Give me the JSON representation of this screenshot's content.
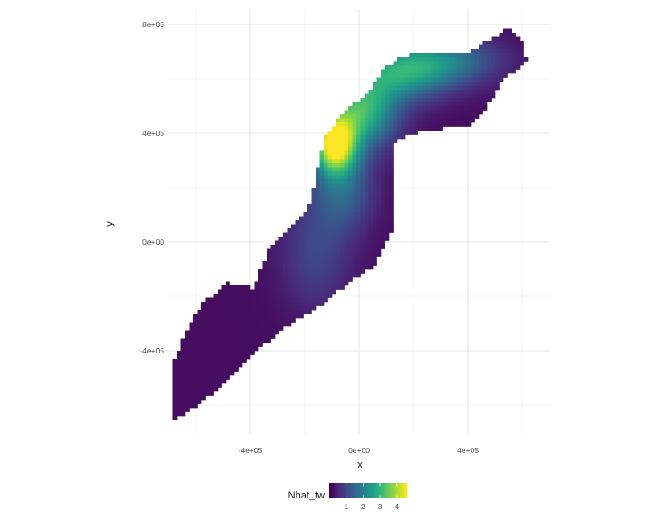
{
  "chart_data": {
    "type": "heatmap",
    "title": "",
    "xlabel": "x",
    "ylabel": "y",
    "xlim": [
      -620000,
      700000
    ],
    "ylim": [
      -660000,
      800000
    ],
    "x_ticks": [
      {
        "value": -400000,
        "label": "-4e+05"
      },
      {
        "value": 0,
        "label": "0e+00"
      },
      {
        "value": 400000,
        "label": "4e+05"
      }
    ],
    "y_ticks": [
      {
        "value": 800000,
        "label": "8e+05"
      },
      {
        "value": 400000,
        "label": "4e+05"
      },
      {
        "value": 0,
        "label": "0e+00"
      },
      {
        "value": -400000,
        "label": "-4e+05"
      }
    ],
    "grid": true,
    "fill_variable": "Nhat_tw",
    "colorscale": "viridis",
    "color_range": [
      0,
      4.6
    ],
    "legend": {
      "title": "Nhat_tw",
      "position": "bottom",
      "ticks": [
        {
          "value": 1,
          "label": "1"
        },
        {
          "value": 2,
          "label": "2"
        },
        {
          "value": 3,
          "label": "3"
        },
        {
          "value": 4,
          "label": "4"
        }
      ]
    },
    "outline": [
      [
        -690000,
        -660000
      ],
      [
        -655000,
        -640000
      ],
      [
        -590000,
        -600000
      ],
      [
        -520000,
        -540000
      ],
      [
        -440000,
        -460000
      ],
      [
        -340000,
        -370000
      ],
      [
        -240000,
        -290000
      ],
      [
        -150000,
        -240000
      ],
      [
        -50000,
        -160000
      ],
      [
        60000,
        -80000
      ],
      [
        130000,
        60000
      ],
      [
        125000,
        350000
      ],
      [
        150000,
        380000
      ],
      [
        240000,
        410000
      ],
      [
        320000,
        420000
      ],
      [
        410000,
        430000
      ],
      [
        460000,
        480000
      ],
      [
        520000,
        580000
      ],
      [
        560000,
        620000
      ],
      [
        615000,
        670000
      ],
      [
        600000,
        740000
      ],
      [
        570000,
        770000
      ],
      [
        550000,
        790000
      ],
      [
        490000,
        750000
      ],
      [
        410000,
        700000
      ],
      [
        300000,
        690000
      ],
      [
        220000,
        700000
      ],
      [
        160000,
        680000
      ],
      [
        90000,
        640000
      ],
      [
        40000,
        560000
      ],
      [
        -50000,
        480000
      ],
      [
        -120000,
        400000
      ],
      [
        -150000,
        300000
      ],
      [
        -160000,
        220000
      ],
      [
        -190000,
        120000
      ],
      [
        -260000,
        40000
      ],
      [
        -330000,
        -20000
      ],
      [
        -360000,
        -100000
      ],
      [
        -390000,
        -170000
      ],
      [
        -480000,
        -150000
      ],
      [
        -580000,
        -230000
      ],
      [
        -640000,
        -340000
      ],
      [
        -690000,
        -460000
      ]
    ],
    "hotspots": [
      {
        "x": -90000,
        "y": 360000,
        "sx": 55000,
        "sy": 75000,
        "value": 4.3
      },
      {
        "x": 10000,
        "y": 480000,
        "sx": 90000,
        "sy": 90000,
        "value": 2.8
      },
      {
        "x": 150000,
        "y": 620000,
        "sx": 130000,
        "sy": 70000,
        "value": 2.2
      },
      {
        "x": 320000,
        "y": 670000,
        "sx": 140000,
        "sy": 60000,
        "value": 1.5
      },
      {
        "x": -60000,
        "y": 200000,
        "sx": 80000,
        "sy": 110000,
        "value": 1.3
      },
      {
        "x": -160000,
        "y": -40000,
        "sx": 90000,
        "sy": 150000,
        "value": 0.8
      }
    ]
  }
}
